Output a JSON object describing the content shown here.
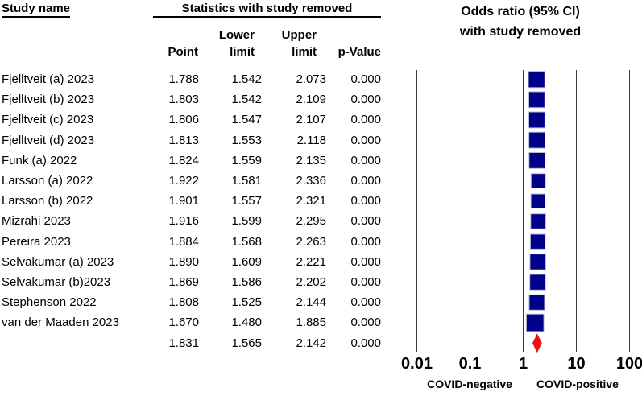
{
  "table": {
    "study_col_header": "Study name",
    "stats_header": "Statistics with study removed",
    "columns": {
      "point": "Point",
      "lower1": "Lower",
      "lower2": "limit",
      "upper1": "Upper",
      "upper2": "limit",
      "p_value": "p-Value"
    }
  },
  "chart_data": {
    "type": "forest",
    "x_scale": "log10",
    "title_lines": [
      "Odds ratio (95% CI)",
      "with study removed"
    ],
    "x_ticks": [
      "0.01",
      "0.1",
      "1",
      "10",
      "100"
    ],
    "x_tick_values": [
      0.01,
      0.1,
      1,
      10,
      100
    ],
    "x_range": [
      0.01,
      100
    ],
    "grid": "vertical-lines-at-ticks",
    "annotations": {
      "left": "COVID-negative",
      "right": "COVID-positive"
    },
    "studies": [
      {
        "name": "Fjelltveit (a) 2023",
        "point": "1.788",
        "lower": "1.542",
        "upper": "2.073",
        "p_value": "0.000"
      },
      {
        "name": "Fjelltveit (b) 2023",
        "point": "1.803",
        "lower": "1.542",
        "upper": "2.109",
        "p_value": "0.000"
      },
      {
        "name": "Fjelltveit (c) 2023",
        "point": "1.806",
        "lower": "1.547",
        "upper": "2.107",
        "p_value": "0.000"
      },
      {
        "name": "Fjelltveit (d) 2023",
        "point": "1.813",
        "lower": "1.553",
        "upper": "2.118",
        "p_value": "0.000"
      },
      {
        "name": "Funk (a) 2022",
        "point": "1.824",
        "lower": "1.559",
        "upper": "2.135",
        "p_value": "0.000"
      },
      {
        "name": "Larsson (a) 2022",
        "point": "1.922",
        "lower": "1.581",
        "upper": "2.336",
        "p_value": "0.000"
      },
      {
        "name": "Larsson (b) 2022",
        "point": "1.901",
        "lower": "1.557",
        "upper": "2.321",
        "p_value": "0.000"
      },
      {
        "name": "Mizrahi 2023",
        "point": "1.916",
        "lower": "1.599",
        "upper": "2.295",
        "p_value": "0.000"
      },
      {
        "name": "Pereira 2023",
        "point": "1.884",
        "lower": "1.568",
        "upper": "2.263",
        "p_value": "0.000"
      },
      {
        "name": "Selvakumar (a) 2023",
        "point": "1.890",
        "lower": "1.609",
        "upper": "2.221",
        "p_value": "0.000"
      },
      {
        "name": "Selvakumar (b)2023",
        "point": "1.869",
        "lower": "1.586",
        "upper": "2.202",
        "p_value": "0.000"
      },
      {
        "name": "Stephenson 2022",
        "point": "1.808",
        "lower": "1.525",
        "upper": "2.144",
        "p_value": "0.000"
      },
      {
        "name": "van der Maaden 2023",
        "point": "1.670",
        "lower": "1.480",
        "upper": "1.885",
        "p_value": "0.000"
      }
    ],
    "overall": {
      "name": "",
      "point": "1.831",
      "lower": "1.565",
      "upper": "2.142",
      "p_value": "0.000",
      "marker": "diamond"
    }
  },
  "colors": {
    "square": "#00008B",
    "square_border": "#b9bdd2",
    "diamond": "#EE1111",
    "gridline": "#3a3a3a",
    "text": "#000000",
    "background": "#ffffff"
  }
}
